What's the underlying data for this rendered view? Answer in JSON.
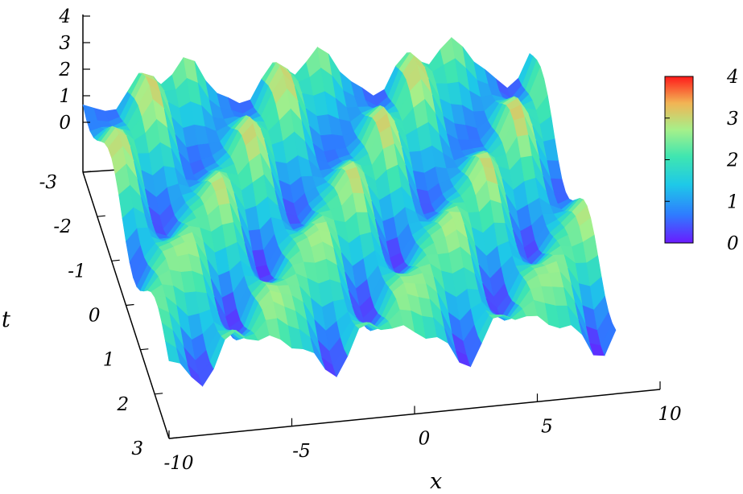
{
  "chart_data": {
    "type": "surface",
    "title": "",
    "xlabel": "x",
    "ylabel": "t",
    "zlabel": "",
    "xlim": [
      -10,
      10
    ],
    "tlim": [
      -3,
      3
    ],
    "zlim": [
      0,
      4
    ],
    "x_ticks": [
      "-10",
      "-5",
      "0",
      "5",
      "10"
    ],
    "t_ticks": [
      "-3",
      "-2",
      "-1",
      "0",
      "1",
      "2",
      "3"
    ],
    "z_ticks": [
      "0",
      "1",
      "2",
      "3",
      "4"
    ],
    "colorbar": {
      "range": [
        0,
        4
      ],
      "ticks": [
        "0",
        "1",
        "2",
        "3",
        "4"
      ],
      "colormap": [
        "#6a1bff",
        "#2e7cff",
        "#1ec9e8",
        "#3fe6b0",
        "#a6f08a",
        "#f2b454",
        "#ff1a1a"
      ]
    },
    "surface": {
      "description_values": "periodic ridged surface, amplitude between 0 and about 4",
      "x_samples": 41,
      "t_samples": 25
    }
  }
}
